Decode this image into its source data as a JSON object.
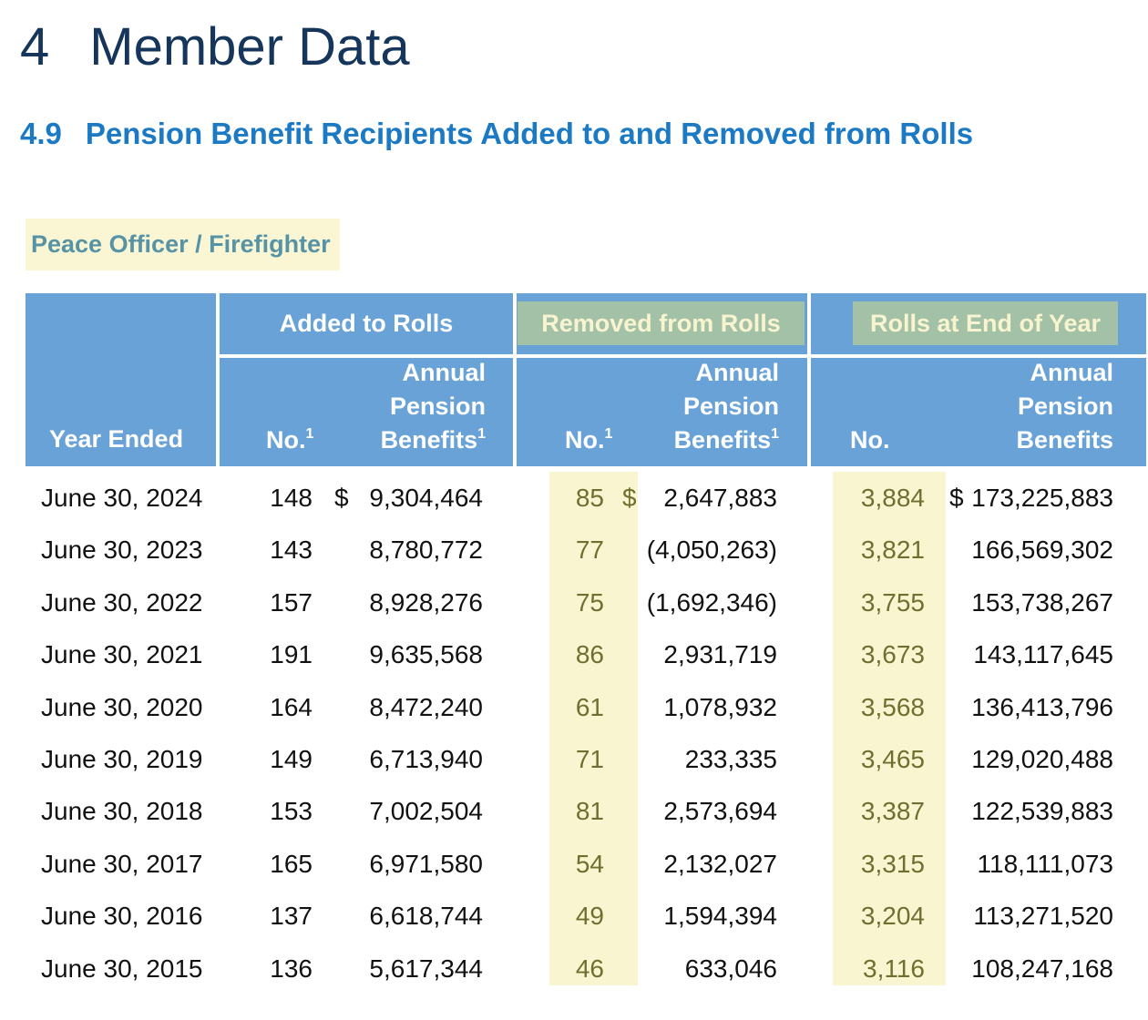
{
  "page": {
    "chapter_number": "4",
    "chapter_title": "Member Data",
    "section_number": "4.9",
    "section_title": "Pension Benefit Recipients Added to and Removed from Rolls",
    "group_label": "Peace Officer / Firefighter"
  },
  "table": {
    "headers": {
      "year": "Year Ended",
      "added": "Added to Rolls",
      "removed": "Removed from Rolls",
      "rolls": "Rolls at End of Year",
      "no": "No.",
      "benefits": [
        "Annual",
        "Pension",
        "Benefits"
      ],
      "footnote_marker": "1"
    },
    "rows": [
      {
        "year": "June 30, 2024",
        "added_no": "148",
        "added_dollar": "$",
        "added_benefits": "9,304,464",
        "removed_no": "85",
        "removed_dollar": "$",
        "removed_benefits": "2,647,883",
        "rolls_no": "3,884",
        "rolls_dollar": "$",
        "rolls_benefits": "173,225,883"
      },
      {
        "year": "June 30, 2023",
        "added_no": "143",
        "added_dollar": "",
        "added_benefits": "8,780,772",
        "removed_no": "77",
        "removed_dollar": "",
        "removed_benefits": "(4,050,263)",
        "rolls_no": "3,821",
        "rolls_dollar": "",
        "rolls_benefits": "166,569,302"
      },
      {
        "year": "June 30, 2022",
        "added_no": "157",
        "added_dollar": "",
        "added_benefits": "8,928,276",
        "removed_no": "75",
        "removed_dollar": "",
        "removed_benefits": "(1,692,346)",
        "rolls_no": "3,755",
        "rolls_dollar": "",
        "rolls_benefits": "153,738,267"
      },
      {
        "year": "June 30, 2021",
        "added_no": "191",
        "added_dollar": "",
        "added_benefits": "9,635,568",
        "removed_no": "86",
        "removed_dollar": "",
        "removed_benefits": "2,931,719",
        "rolls_no": "3,673",
        "rolls_dollar": "",
        "rolls_benefits": "143,117,645"
      },
      {
        "year": "June 30, 2020",
        "added_no": "164",
        "added_dollar": "",
        "added_benefits": "8,472,240",
        "removed_no": "61",
        "removed_dollar": "",
        "removed_benefits": "1,078,932",
        "rolls_no": "3,568",
        "rolls_dollar": "",
        "rolls_benefits": "136,413,796"
      },
      {
        "year": "June 30, 2019",
        "added_no": "149",
        "added_dollar": "",
        "added_benefits": "6,713,940",
        "removed_no": "71",
        "removed_dollar": "",
        "removed_benefits": "233,335",
        "rolls_no": "3,465",
        "rolls_dollar": "",
        "rolls_benefits": "129,020,488"
      },
      {
        "year": "June 30, 2018",
        "added_no": "153",
        "added_dollar": "",
        "added_benefits": "7,002,504",
        "removed_no": "81",
        "removed_dollar": "",
        "removed_benefits": "2,573,694",
        "rolls_no": "3,387",
        "rolls_dollar": "",
        "rolls_benefits": "122,539,883"
      },
      {
        "year": "June 30, 2017",
        "added_no": "165",
        "added_dollar": "",
        "added_benefits": "6,971,580",
        "removed_no": "54",
        "removed_dollar": "",
        "removed_benefits": "2,132,027",
        "rolls_no": "3,315",
        "rolls_dollar": "",
        "rolls_benefits": "118,111,073"
      },
      {
        "year": "June 30, 2016",
        "added_no": "137",
        "added_dollar": "",
        "added_benefits": "6,618,744",
        "removed_no": "49",
        "removed_dollar": "",
        "removed_benefits": "1,594,394",
        "rolls_no": "3,204",
        "rolls_dollar": "",
        "rolls_benefits": "113,271,520"
      },
      {
        "year": "June 30, 2015",
        "added_no": "136",
        "added_dollar": "",
        "added_benefits": "5,617,344",
        "removed_no": "46",
        "removed_dollar": "",
        "removed_benefits": "633,046",
        "rolls_no": "3,116",
        "rolls_dollar": "",
        "rolls_benefits": "108,247,168"
      }
    ]
  },
  "colors": {
    "chapter-navy": "#16355B",
    "section-blue": "#1B7AC3",
    "teal-label": "#5693A6",
    "label-highlight": "#FAF6D3",
    "header-blue": "#69A2D6",
    "sage-highlight": "#A3C1A7",
    "sage-text": "#F8F4CF",
    "band-yellow": "#FAF5D1",
    "olive-number": "#6F7030",
    "data-text": "#111111"
  }
}
